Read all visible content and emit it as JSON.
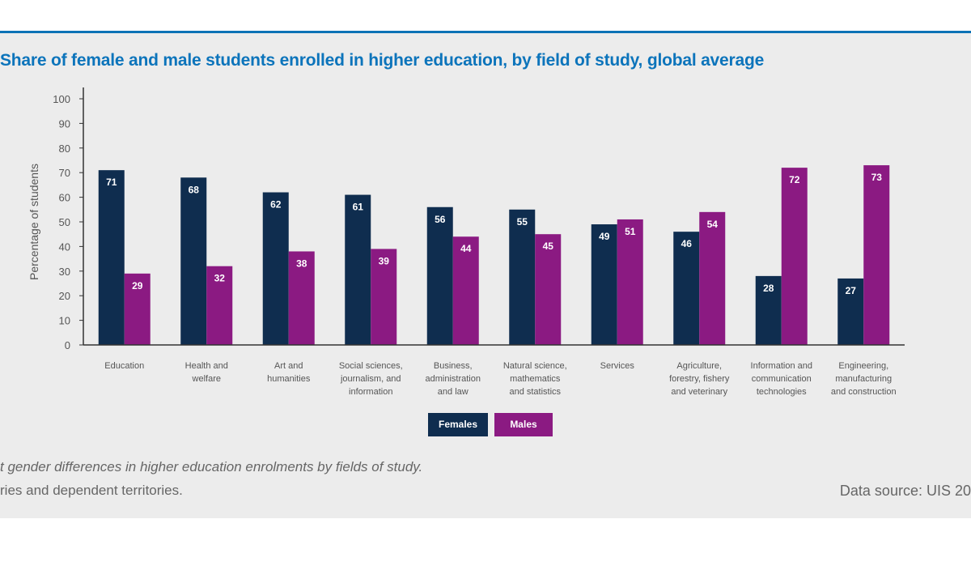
{
  "colors": {
    "females": "#0f2d4f",
    "males": "#8b1a82",
    "title": "#0c74bb",
    "panel_background": "#ececec"
  },
  "legend": {
    "females": "Females",
    "males": "Males"
  },
  "footnotes": {
    "line1": "t gender differences in higher education enrolments by fields of study.",
    "line2": "ries and dependent territories.",
    "source": "Data source: UIS 20"
  },
  "chart_data": {
    "type": "bar",
    "title": "Share of female and male students enrolled in higher education, by field of study, global average",
    "ylabel": "Percentage of students",
    "xlabel": "",
    "ylim": [
      0,
      100
    ],
    "yticks": [
      "0",
      "10",
      "20",
      "30",
      "40",
      "50",
      "60",
      "70",
      "80",
      "90",
      "100"
    ],
    "grid": false,
    "legend_position": "bottom-center",
    "categories": [
      [
        "Education"
      ],
      [
        "Health and",
        "welfare"
      ],
      [
        "Art and",
        "humanities"
      ],
      [
        "Social sciences,",
        "journalism, and",
        "information"
      ],
      [
        "Business,",
        "administration",
        "and law"
      ],
      [
        "Natural science,",
        "mathematics",
        "and statistics"
      ],
      [
        "Services"
      ],
      [
        "Agriculture,",
        "forestry, fishery",
        "and veterinary"
      ],
      [
        "Information and",
        "communication",
        "technologies"
      ],
      [
        "Engineering,",
        "manufacturing",
        "and construction"
      ]
    ],
    "series": [
      {
        "name": "Females",
        "values": [
          71,
          68,
          62,
          61,
          56,
          55,
          49,
          46,
          28,
          27
        ]
      },
      {
        "name": "Males",
        "values": [
          29,
          32,
          38,
          39,
          44,
          45,
          51,
          54,
          72,
          73
        ]
      }
    ]
  }
}
